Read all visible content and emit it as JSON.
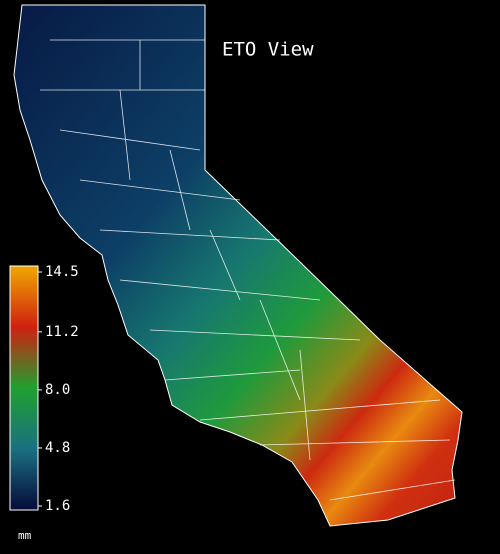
{
  "title": "ETO View",
  "legend": {
    "label": "mm",
    "lim": [
      1.6,
      14.5
    ],
    "ticks": [
      14.5,
      11.2,
      {
        "value": 8.0,
        "label": "8.0"
      },
      4.8,
      1.6
    ]
  }
}
